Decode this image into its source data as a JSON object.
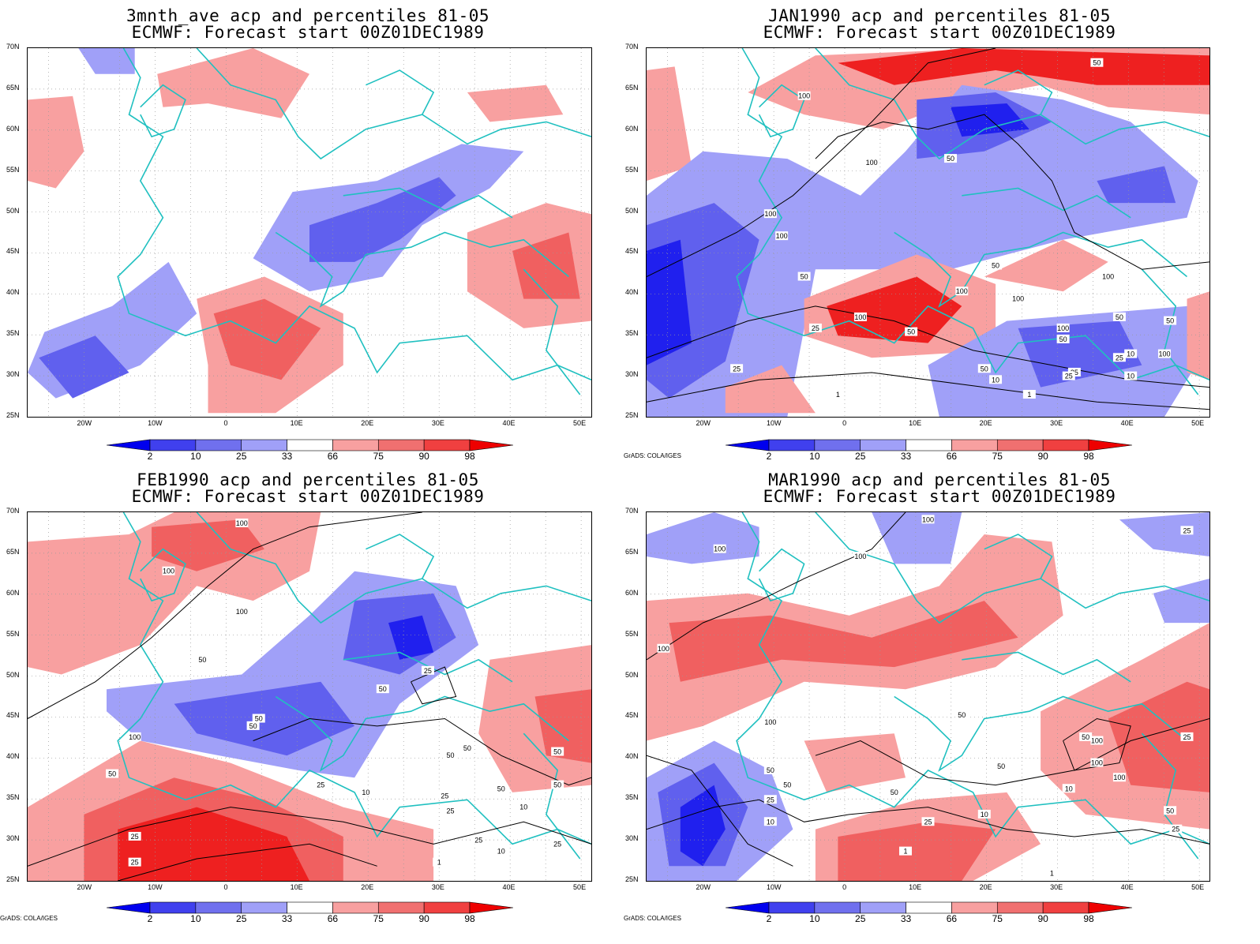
{
  "panels": [
    {
      "title1": "3mnth_ave acp and percentiles 81-05",
      "title2": "ECMWF: Forecast start 00Z01DEC1989",
      "credit": "",
      "contours": []
    },
    {
      "title1": "JAN1990 acp and percentiles 81-05",
      "title2": "ECMWF: Forecast start 00Z01DEC1989",
      "credit": "GrADS: COLA/IGES",
      "contours": [
        "50",
        "100",
        "100",
        "50",
        "100",
        "100",
        "50",
        "25",
        "50",
        "100",
        "100",
        "50",
        "100",
        "100",
        "50",
        "25",
        "25",
        "50",
        "10",
        "10",
        "1",
        "1",
        "25",
        "25",
        "50",
        "50",
        "100",
        "10",
        "100"
      ]
    },
    {
      "title1": "FEB1990 acp and percentiles 81-05",
      "title2": "ECMWF: Forecast start 00Z01DEC1989",
      "credit": "GrADS: COLA/IGES",
      "contours": [
        "100",
        "100",
        "100",
        "50",
        "25",
        "50",
        "100",
        "50",
        "50",
        "50",
        "25",
        "50",
        "50",
        "50",
        "10",
        "25",
        "10",
        "1",
        "25",
        "25",
        "25",
        "10",
        "50",
        "50",
        "25",
        "25"
      ]
    },
    {
      "title1": "MAR1990 acp and percentiles 81-05",
      "title2": "ECMWF: Forecast start 00Z01DEC1989",
      "credit": "GrADS: COLA/IGES",
      "contours": [
        "100",
        "100",
        "100",
        "25",
        "100",
        "100",
        "50",
        "50",
        "50",
        "50",
        "10",
        "25",
        "1",
        "25",
        "10",
        "50",
        "10",
        "100",
        "100",
        "100",
        "50",
        "25",
        "25",
        "50",
        "1"
      ]
    }
  ],
  "y_axis_labels": [
    "70N",
    "65N",
    "60N",
    "55N",
    "50N",
    "45N",
    "40N",
    "35N",
    "30N",
    "25N"
  ],
  "x_axis_labels": [
    "20W",
    "10W",
    "0",
    "10E",
    "20E",
    "30E",
    "40E",
    "50E"
  ],
  "colorbar": {
    "labels": [
      "2",
      "10",
      "25",
      "33",
      "66",
      "75",
      "90",
      "98"
    ],
    "colors": [
      "#0000ee",
      "#4040ee",
      "#7070ee",
      "#a0a0f8",
      "#ffffff",
      "#f8a0a0",
      "#f07070",
      "#f04040",
      "#ee0000"
    ]
  },
  "colors": {
    "coastline": "#20c0c0",
    "contour": "#000000",
    "strong_blue": "#2020ee",
    "mid_blue": "#6060ee",
    "light_blue": "#a0a0f8",
    "light_red": "#f8a0a0",
    "mid_red": "#f06060",
    "strong_red": "#ee2020"
  }
}
